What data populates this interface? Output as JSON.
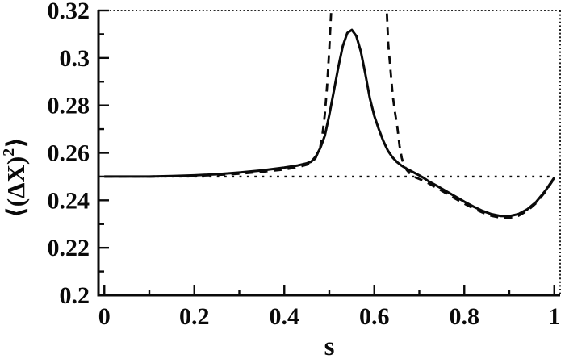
{
  "colors": {
    "ink": "#0a0a0a",
    "background": "#ffffff"
  },
  "chart_data": {
    "type": "line",
    "title": "",
    "xlabel": "s",
    "ylabel": {
      "pre": "⟨(ΔX)",
      "sup": "2",
      "post": "⟩"
    },
    "xlim": [
      0,
      1
    ],
    "ylim": [
      0.2,
      0.32
    ],
    "x_view": [
      -0.013,
      1.013
    ],
    "grid": false,
    "legend": false,
    "frame": {
      "left": "solid",
      "bottom": "solid",
      "top": "dotted",
      "right": "dotted"
    },
    "x_ticks": {
      "major": [
        {
          "v": 0,
          "label": "0"
        },
        {
          "v": 0.2,
          "label": "0.2"
        },
        {
          "v": 0.4,
          "label": "0.4"
        },
        {
          "v": 0.6,
          "label": "0.6"
        },
        {
          "v": 0.8,
          "label": "0.8"
        },
        {
          "v": 1,
          "label": "1"
        }
      ],
      "minor": [
        0.1,
        0.3,
        0.5,
        0.7,
        0.9
      ]
    },
    "y_ticks": {
      "major": [
        {
          "v": 0.2,
          "label": "0.2"
        },
        {
          "v": 0.22,
          "label": "0.22"
        },
        {
          "v": 0.24,
          "label": "0.24"
        },
        {
          "v": 0.26,
          "label": "0.26"
        },
        {
          "v": 0.28,
          "label": "0.28"
        },
        {
          "v": 0.3,
          "label": "0.3"
        },
        {
          "v": 0.32,
          "label": "0.32"
        }
      ],
      "minor": [
        0.21,
        0.23,
        0.25,
        0.27,
        0.29,
        0.31
      ]
    },
    "series": [
      {
        "name": "dotted-reference-line",
        "style": "dotted",
        "points": [
          [
            0.0,
            0.25
          ],
          [
            1.0,
            0.25
          ]
        ]
      },
      {
        "name": "dashed-curve",
        "style": "dashed",
        "points": [
          [
            0.0,
            0.25
          ],
          [
            0.05,
            0.25
          ],
          [
            0.1,
            0.25
          ],
          [
            0.15,
            0.2501
          ],
          [
            0.2,
            0.2503
          ],
          [
            0.25,
            0.2507
          ],
          [
            0.3,
            0.2512
          ],
          [
            0.35,
            0.252
          ],
          [
            0.4,
            0.253
          ],
          [
            0.43,
            0.254
          ],
          [
            0.45,
            0.255
          ],
          [
            0.46,
            0.2558
          ],
          [
            0.47,
            0.258
          ],
          [
            0.48,
            0.2625
          ],
          [
            0.485,
            0.268
          ],
          [
            0.49,
            0.276
          ],
          [
            0.495,
            0.288
          ],
          [
            0.5,
            0.304
          ],
          [
            0.505,
            0.323
          ],
          [
            0.509,
            0.345
          ],
          [
            0.623,
            0.345
          ],
          [
            0.627,
            0.323
          ],
          [
            0.631,
            0.306
          ],
          [
            0.636,
            0.295
          ],
          [
            0.641,
            0.284
          ],
          [
            0.646,
            0.277
          ],
          [
            0.651,
            0.271
          ],
          [
            0.656,
            0.263
          ],
          [
            0.661,
            0.2578
          ],
          [
            0.666,
            0.2548
          ],
          [
            0.672,
            0.2528
          ],
          [
            0.68,
            0.2511
          ],
          [
            0.69,
            0.2498
          ],
          [
            0.7,
            0.249
          ],
          [
            0.71,
            0.2482
          ],
          [
            0.72,
            0.2472
          ],
          [
            0.74,
            0.2451
          ],
          [
            0.76,
            0.2429
          ],
          [
            0.78,
            0.2407
          ],
          [
            0.8,
            0.2386
          ],
          [
            0.82,
            0.2366
          ],
          [
            0.84,
            0.2349
          ],
          [
            0.86,
            0.2335
          ],
          [
            0.88,
            0.2327
          ],
          [
            0.9,
            0.2326
          ],
          [
            0.92,
            0.2335
          ],
          [
            0.94,
            0.2356
          ],
          [
            0.96,
            0.2389
          ],
          [
            0.98,
            0.2436
          ],
          [
            1.0,
            0.2493
          ]
        ]
      },
      {
        "name": "solid-curve",
        "style": "solid",
        "points": [
          [
            0.0,
            0.25
          ],
          [
            0.05,
            0.25
          ],
          [
            0.1,
            0.25
          ],
          [
            0.15,
            0.2502
          ],
          [
            0.2,
            0.2505
          ],
          [
            0.25,
            0.251
          ],
          [
            0.3,
            0.2517
          ],
          [
            0.35,
            0.2526
          ],
          [
            0.4,
            0.2538
          ],
          [
            0.43,
            0.2547
          ],
          [
            0.45,
            0.2556
          ],
          [
            0.46,
            0.2563
          ],
          [
            0.47,
            0.2585
          ],
          [
            0.48,
            0.262
          ],
          [
            0.49,
            0.2672
          ],
          [
            0.5,
            0.276
          ],
          [
            0.51,
            0.286
          ],
          [
            0.52,
            0.2962
          ],
          [
            0.53,
            0.305
          ],
          [
            0.54,
            0.3105
          ],
          [
            0.55,
            0.3118
          ],
          [
            0.56,
            0.3092
          ],
          [
            0.57,
            0.3028
          ],
          [
            0.58,
            0.2933
          ],
          [
            0.59,
            0.283
          ],
          [
            0.6,
            0.2755
          ],
          [
            0.61,
            0.27
          ],
          [
            0.62,
            0.265
          ],
          [
            0.63,
            0.261
          ],
          [
            0.64,
            0.2582
          ],
          [
            0.65,
            0.2562
          ],
          [
            0.66,
            0.2547
          ],
          [
            0.67,
            0.2535
          ],
          [
            0.68,
            0.2525
          ],
          [
            0.69,
            0.2515
          ],
          [
            0.7,
            0.2505
          ],
          [
            0.71,
            0.2494
          ],
          [
            0.72,
            0.2481
          ],
          [
            0.74,
            0.246
          ],
          [
            0.76,
            0.2438
          ],
          [
            0.78,
            0.2416
          ],
          [
            0.8,
            0.2394
          ],
          [
            0.82,
            0.2374
          ],
          [
            0.84,
            0.2356
          ],
          [
            0.86,
            0.2342
          ],
          [
            0.88,
            0.2334
          ],
          [
            0.9,
            0.2333
          ],
          [
            0.92,
            0.2342
          ],
          [
            0.94,
            0.2362
          ],
          [
            0.96,
            0.2394
          ],
          [
            0.98,
            0.244
          ],
          [
            1.0,
            0.2496
          ]
        ]
      }
    ]
  }
}
